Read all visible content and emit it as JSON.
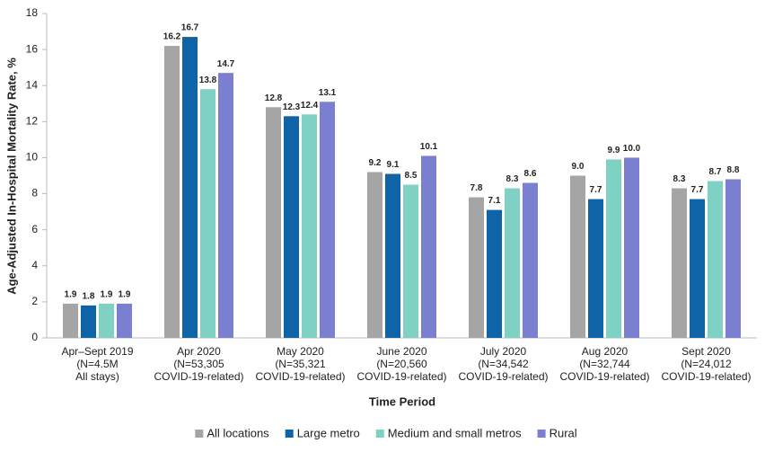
{
  "chart_data": {
    "type": "bar",
    "categories": [
      [
        "Apr–Sept 2019",
        "(N=4.5M",
        "All stays)"
      ],
      [
        "Apr 2020",
        "(N=53,305",
        "COVID-19-related)"
      ],
      [
        "May 2020",
        "(N=35,321",
        "COVID-19-related)"
      ],
      [
        "June 2020",
        "(N=20,560",
        "COVID-19-related)"
      ],
      [
        "July 2020",
        "(N=34,542",
        "COVID-19-related)"
      ],
      [
        "Aug 2020",
        "(N=32,744",
        "COVID-19-related)"
      ],
      [
        "Sept 2020",
        "(N=24,012",
        "COVID-19-related)"
      ]
    ],
    "series": [
      {
        "name": "All locations",
        "color": "#a5a5a5",
        "values": [
          1.9,
          16.2,
          12.8,
          9.2,
          7.8,
          9.0,
          8.3
        ],
        "value_labels": [
          "1.9",
          "16.2",
          "12.8",
          "9.2",
          "7.8",
          "9.0",
          "8.3"
        ]
      },
      {
        "name": "Large metro",
        "color": "#0f64a8",
        "values": [
          1.8,
          16.7,
          12.3,
          9.1,
          7.1,
          7.7,
          7.7
        ],
        "value_labels": [
          "1.8",
          "16.7",
          "12.3",
          "9.1",
          "7.1",
          "7.7",
          "7.7"
        ]
      },
      {
        "name": "Medium and small metros",
        "color": "#7fd1c4",
        "values": [
          1.9,
          13.8,
          12.4,
          8.5,
          8.3,
          9.9,
          8.7
        ],
        "value_labels": [
          "1.9",
          "13.8",
          "12.4",
          "8.5",
          "8.3",
          "9.9",
          "8.7"
        ]
      },
      {
        "name": "Rural",
        "color": "#7b7fcf",
        "values": [
          1.9,
          14.7,
          13.1,
          10.1,
          8.6,
          10.0,
          8.8
        ],
        "value_labels": [
          "1.9",
          "14.7",
          "13.1",
          "10.1",
          "8.6",
          "10.0",
          "8.8"
        ]
      }
    ],
    "x_label": "Time Period",
    "y_label": "Age-Adjusted In-Hospital Mortality Rate, %",
    "ylim": [
      0,
      18
    ],
    "yticks": [
      0,
      2,
      4,
      6,
      8,
      10,
      12,
      14,
      16,
      18
    ],
    "grid": false,
    "legend": "bottom"
  }
}
